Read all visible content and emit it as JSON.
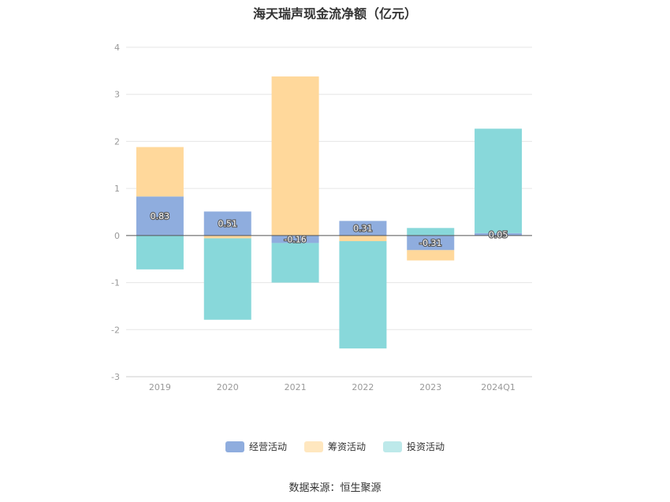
{
  "chart_data": {
    "type": "bar",
    "stacked": true,
    "title": "海天瑞声现金流净额（亿元）",
    "categories": [
      "2019",
      "2020",
      "2021",
      "2022",
      "2023",
      "2024Q1"
    ],
    "ylim": [
      -3,
      4
    ],
    "yticks": [
      4,
      3,
      2,
      1,
      0,
      -1,
      -2,
      -3
    ],
    "grid": true,
    "legend_position": "bottom",
    "series": [
      {
        "name": "经营活动",
        "color": "#8fadde",
        "values": [
          0.83,
          0.51,
          -0.16,
          0.31,
          -0.31,
          0.05
        ],
        "labels": [
          "0.83",
          "0.51",
          "-0.16",
          "0.31",
          "-0.31",
          "0.05"
        ]
      },
      {
        "name": "筹资活动",
        "color": "#ffd89b",
        "values": [
          1.05,
          -0.06,
          3.38,
          -0.12,
          -0.22,
          0.0
        ]
      },
      {
        "name": "投资活动",
        "color": "#88d8da",
        "values": [
          -0.72,
          -1.73,
          -0.84,
          -2.28,
          0.16,
          2.22
        ]
      }
    ],
    "legend_colors": [
      "#8fadde",
      "#ffe7bf",
      "#bde9ea"
    ]
  },
  "source": "数据来源：恒生聚源"
}
